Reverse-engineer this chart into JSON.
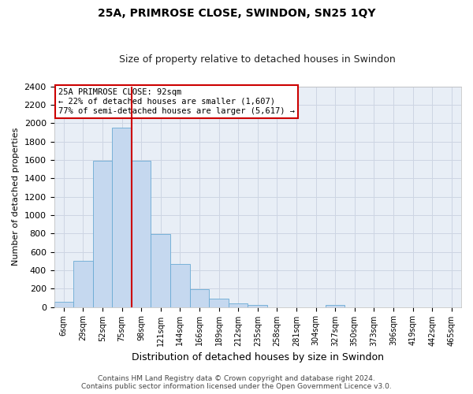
{
  "title": "25A, PRIMROSE CLOSE, SWINDON, SN25 1QY",
  "subtitle": "Size of property relative to detached houses in Swindon",
  "xlabel": "Distribution of detached houses by size in Swindon",
  "ylabel": "Number of detached properties",
  "categories": [
    "6sqm",
    "29sqm",
    "52sqm",
    "75sqm",
    "98sqm",
    "121sqm",
    "144sqm",
    "166sqm",
    "189sqm",
    "212sqm",
    "235sqm",
    "258sqm",
    "281sqm",
    "304sqm",
    "327sqm",
    "350sqm",
    "373sqm",
    "396sqm",
    "419sqm",
    "442sqm",
    "465sqm"
  ],
  "values": [
    60,
    500,
    1590,
    1950,
    1590,
    790,
    470,
    195,
    90,
    35,
    25,
    0,
    0,
    0,
    25,
    0,
    0,
    0,
    0,
    0,
    0
  ],
  "bar_color": "#c5d8ef",
  "bar_edge_color": "#6aaad4",
  "red_line_index": 4,
  "annotation_line1": "25A PRIMROSE CLOSE: 92sqm",
  "annotation_line2": "← 22% of detached houses are smaller (1,607)",
  "annotation_line3": "77% of semi-detached houses are larger (5,617) →",
  "ylim": [
    0,
    2400
  ],
  "yticks": [
    0,
    200,
    400,
    600,
    800,
    1000,
    1200,
    1400,
    1600,
    1800,
    2000,
    2200,
    2400
  ],
  "grid_color": "#cdd5e3",
  "background_color": "#e8eef6",
  "footer_line1": "Contains HM Land Registry data © Crown copyright and database right 2024.",
  "footer_line2": "Contains public sector information licensed under the Open Government Licence v3.0.",
  "annotation_box_facecolor": "#ffffff",
  "annotation_box_edgecolor": "#cc0000",
  "red_line_color": "#cc0000",
  "title_fontsize": 10,
  "subtitle_fontsize": 9,
  "ylabel_fontsize": 8,
  "xlabel_fontsize": 9,
  "tick_fontsize": 8,
  "xtick_fontsize": 7,
  "footer_fontsize": 6.5,
  "annot_fontsize": 7.5
}
